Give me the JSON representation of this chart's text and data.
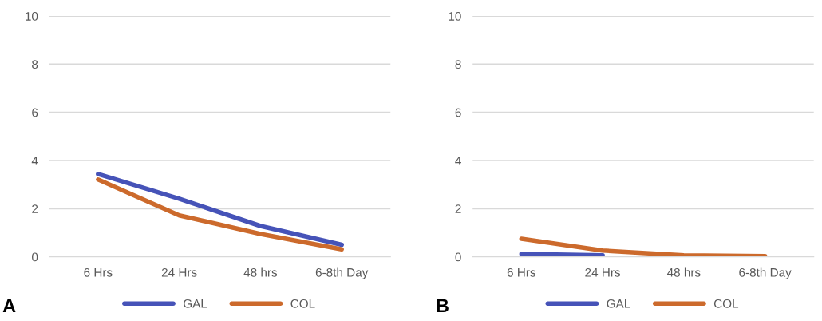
{
  "chart_data": [
    {
      "type": "line",
      "categories": [
        "6 Hrs",
        "24 Hrs",
        "48 hrs",
        "6-8th Day"
      ],
      "ylim": [
        0,
        10
      ],
      "yticks": [
        0,
        2,
        4,
        6,
        8,
        10
      ],
      "grid": "y",
      "legend": "bottom",
      "annotations": [
        "A"
      ],
      "series": [
        {
          "name": "GAL",
          "color": "#4653b8",
          "values": [
            3.44,
            2.41,
            1.28,
            0.5
          ]
        },
        {
          "name": "COL",
          "color": "#cc6a2c",
          "values": [
            3.21,
            1.72,
            0.95,
            0.31
          ]
        }
      ]
    },
    {
      "type": "line",
      "categories": [
        "6 Hrs",
        "24 Hrs",
        "48 hrs",
        "6-8th Day"
      ],
      "ylim": [
        0,
        10
      ],
      "yticks": [
        0,
        2,
        4,
        6,
        8,
        10
      ],
      "grid": "y",
      "legend": "bottom",
      "annotations": [
        "B"
      ],
      "series": [
        {
          "name": "GAL",
          "color": "#4653b8",
          "values": [
            0.12,
            0.06,
            null,
            null
          ]
        },
        {
          "name": "COL",
          "color": "#cc6a2c",
          "values": [
            0.75,
            0.26,
            0.06,
            0.03
          ]
        }
      ]
    }
  ]
}
